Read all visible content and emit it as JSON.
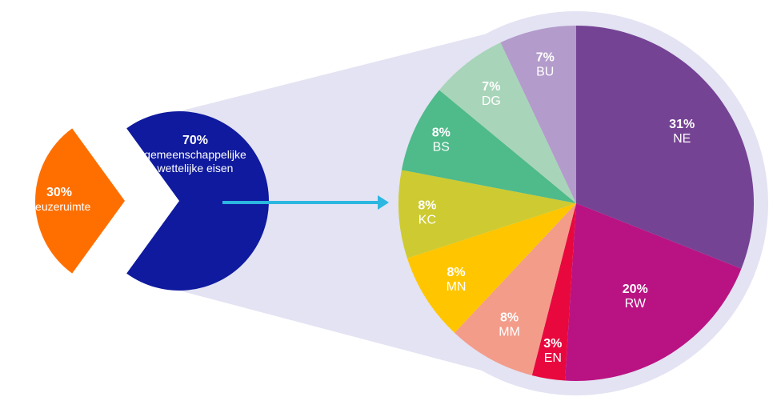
{
  "chart_data": [
    {
      "type": "pie",
      "slices": [
        {
          "label": "Keuzeruimte",
          "value": 30,
          "value_label": "30%",
          "color": "#FF6F00"
        },
        {
          "label": "gemeenschappelijke wettelijke eisen",
          "value": 70,
          "value_label": "70%",
          "color": "#0F1A9E"
        }
      ]
    },
    {
      "type": "pie",
      "slices": [
        {
          "label": "NE",
          "value": 31,
          "value_label": "31%",
          "color": "#754394"
        },
        {
          "label": "RW",
          "value": 20,
          "value_label": "20%",
          "color": "#B91383"
        },
        {
          "label": "EN",
          "value": 3,
          "value_label": "3%",
          "color": "#E8083E"
        },
        {
          "label": "MM",
          "value": 8,
          "value_label": "8%",
          "color": "#F39C8A"
        },
        {
          "label": "MN",
          "value": 8,
          "value_label": "8%",
          "color": "#FFC600"
        },
        {
          "label": "KC",
          "value": 8,
          "value_label": "8%",
          "color": "#CDCB31"
        },
        {
          "label": "BS",
          "value": 8,
          "value_label": "8%",
          "color": "#4FBA8A"
        },
        {
          "label": "DG",
          "value": 7,
          "value_label": "7%",
          "color": "#A8D5B9"
        },
        {
          "label": "BU",
          "value": 7,
          "value_label": "7%",
          "color": "#B39BCB"
        }
      ]
    }
  ],
  "colors": {
    "connector_fill": "#E3E3F3",
    "arrow": "#2BB7E0",
    "text": "#FFFFFF"
  }
}
